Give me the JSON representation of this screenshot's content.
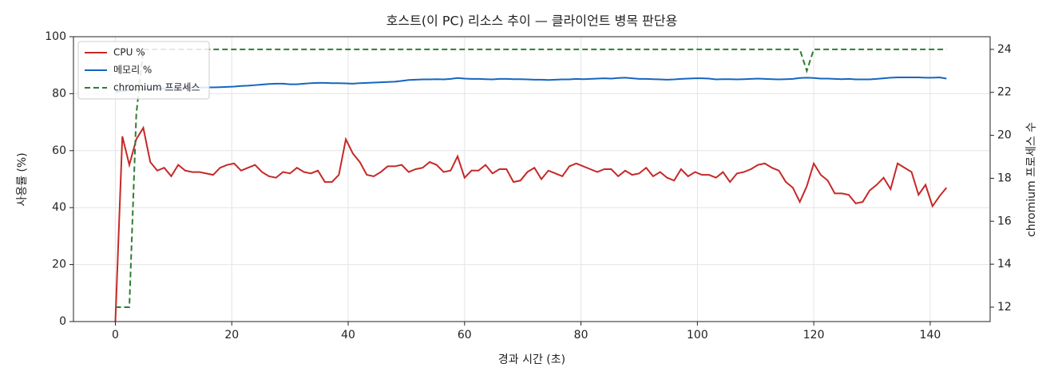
{
  "chart_data": {
    "type": "line",
    "title": "호스트(이 PC) 리소스 추이 — 클라이언트 병목 판단용",
    "x_label": "경과 시간 (초)",
    "y_label": "사용률 (%)",
    "y2_label": "chromium 프로세스 수",
    "x": [
      0,
      1.2,
      2.4,
      3.6,
      4.8,
      6,
      7.2,
      8.4,
      9.6,
      10.8,
      12,
      13.2,
      14.4,
      15.6,
      16.8,
      18,
      19.2,
      20.4,
      21.6,
      22.8,
      24,
      25.2,
      26.4,
      27.6,
      28.8,
      30,
      31.2,
      32.4,
      33.6,
      34.8,
      36,
      37.2,
      38.4,
      39.6,
      40.8,
      42,
      43.2,
      44.4,
      45.6,
      46.8,
      48,
      49.2,
      50.4,
      51.6,
      52.8,
      54,
      55.2,
      56.4,
      57.6,
      58.8,
      60,
      61.2,
      62.4,
      63.6,
      64.8,
      66,
      67.2,
      68.4,
      69.6,
      70.8,
      72,
      73.2,
      74.4,
      75.6,
      76.8,
      78,
      79.2,
      80.4,
      81.6,
      82.8,
      84,
      85.2,
      86.4,
      87.6,
      88.8,
      90,
      91.2,
      92.4,
      93.6,
      94.8,
      96,
      97.2,
      98.4,
      99.6,
      100.8,
      102,
      103.2,
      104.4,
      105.6,
      106.8,
      108,
      109.2,
      110.4,
      111.6,
      112.8,
      114,
      115.2,
      116.4,
      117.6,
      118.8,
      120,
      121.2,
      122.4,
      123.6,
      124.8,
      126,
      127.2,
      128.4,
      129.6,
      130.8,
      132,
      133.2,
      134.4,
      135.6,
      136.8,
      138,
      139.2,
      140.4,
      141.6,
      142.8
    ],
    "series": [
      {
        "name": "CPU %",
        "color": "#c62828",
        "values": [
          0,
          65,
          55,
          64,
          68,
          56,
          53,
          54,
          51,
          55,
          53,
          52.5,
          52.5,
          52,
          51.5,
          54,
          55,
          55.5,
          53,
          54,
          55,
          52.5,
          51,
          50.5,
          52.5,
          52,
          54,
          52.5,
          52,
          53,
          49,
          49,
          51.5,
          64,
          59,
          56,
          51.5,
          51,
          52.5,
          54.5,
          54.5,
          55,
          52.5,
          53.5,
          54,
          56,
          55,
          52.5,
          53,
          58,
          50.5,
          53,
          53,
          55,
          52,
          53.5,
          53.5,
          49,
          49.5,
          52.5,
          54,
          50,
          53,
          52,
          51,
          54.5,
          55.5,
          54.5,
          53.5,
          52.5,
          53.5,
          53.5,
          51,
          53,
          51.5,
          52,
          54,
          51,
          52.5,
          50.5,
          49.5,
          53.5,
          51,
          52.5,
          51.5,
          51.5,
          50.5,
          52.5,
          49,
          52,
          52.5,
          53.5,
          55,
          55.5,
          54,
          53,
          49,
          47,
          42,
          47.5,
          55.5,
          51.5,
          49.5,
          45,
          45,
          44.5,
          41.5,
          42,
          46,
          48,
          50.5,
          46.5,
          55.5,
          54,
          52.5,
          44.5,
          48,
          40.5,
          44,
          47
        ]
      },
      {
        "name": "메모리 %",
        "color": "#1565c0",
        "values": [
          80.5,
          81,
          81.2,
          81.4,
          81.5,
          81.6,
          81.7,
          81.8,
          81.9,
          82,
          82,
          82.1,
          82.1,
          82.2,
          82.2,
          82.3,
          82.4,
          82.5,
          82.7,
          82.8,
          83,
          83.2,
          83.4,
          83.5,
          83.5,
          83.3,
          83.3,
          83.5,
          83.7,
          83.8,
          83.8,
          83.7,
          83.7,
          83.6,
          83.5,
          83.7,
          83.8,
          83.9,
          84,
          84.1,
          84.2,
          84.5,
          84.8,
          84.9,
          85,
          85,
          85.1,
          85,
          85.2,
          85.5,
          85.3,
          85.2,
          85.2,
          85.1,
          85,
          85.2,
          85.2,
          85.1,
          85.1,
          85,
          84.9,
          84.9,
          84.8,
          84.9,
          85,
          85,
          85.2,
          85.1,
          85.2,
          85.3,
          85.4,
          85.3,
          85.5,
          85.6,
          85.4,
          85.2,
          85.2,
          85.1,
          85,
          84.9,
          85,
          85.2,
          85.3,
          85.4,
          85.4,
          85.3,
          85,
          85.1,
          85.1,
          85,
          85.1,
          85.2,
          85.3,
          85.2,
          85.1,
          85,
          85.1,
          85.2,
          85.5,
          85.6,
          85.5,
          85.3,
          85.3,
          85.2,
          85.1,
          85.2,
          85,
          85,
          85,
          85.2,
          85.4,
          85.6,
          85.7,
          85.7,
          85.7,
          85.7,
          85.6,
          85.6,
          85.7,
          85.3
        ]
      },
      {
        "name": "chromium 프로세스",
        "color": "#2e7d32",
        "axis": "y2",
        "dashed": true,
        "values": [
          12,
          12,
          12,
          21,
          24,
          24,
          24,
          24,
          24,
          24,
          24,
          24,
          24,
          24,
          24,
          24,
          24,
          24,
          24,
          24,
          24,
          24,
          24,
          24,
          24,
          24,
          24,
          24,
          24,
          24,
          24,
          24,
          24,
          24,
          24,
          24,
          24,
          24,
          24,
          24,
          24,
          24,
          24,
          24,
          24,
          24,
          24,
          24,
          24,
          24,
          24,
          24,
          24,
          24,
          24,
          24,
          24,
          24,
          24,
          24,
          24,
          24,
          24,
          24,
          24,
          24,
          24,
          24,
          24,
          24,
          24,
          24,
          24,
          24,
          24,
          24,
          24,
          24,
          24,
          24,
          24,
          24,
          24,
          24,
          24,
          24,
          24,
          24,
          24,
          24,
          24,
          24,
          24,
          24,
          24,
          24,
          24,
          24,
          24,
          23,
          24,
          24,
          24,
          24,
          24,
          24,
          24,
          24,
          24,
          24,
          24,
          24,
          24,
          24,
          24,
          24,
          24,
          24,
          24,
          24
        ]
      }
    ],
    "xlim": [
      -7.2,
      150.3
    ],
    "xticks": [
      0,
      20,
      40,
      60,
      80,
      100,
      120,
      140
    ],
    "ylim": [
      0,
      100
    ],
    "yticks": [
      0,
      20,
      40,
      60,
      80,
      100
    ],
    "y2lim": [
      11.33,
      24.59
    ],
    "y2ticks": [
      12,
      14,
      16,
      18,
      20,
      22,
      24
    ],
    "grid": true,
    "legend": "upper-left"
  }
}
